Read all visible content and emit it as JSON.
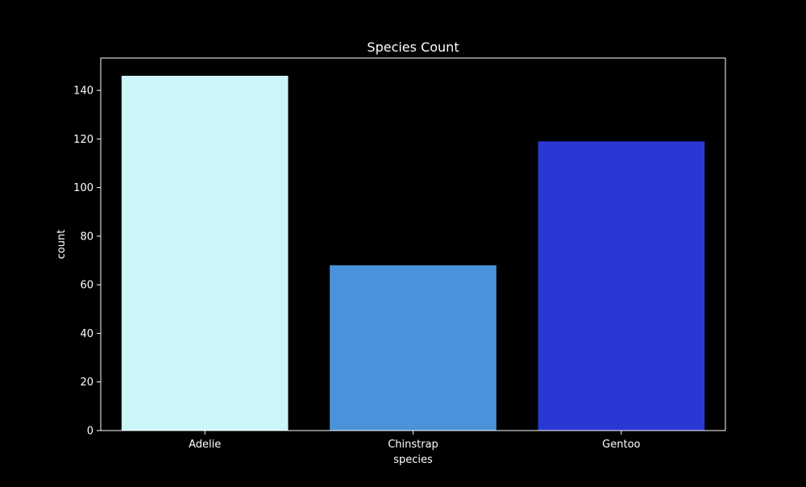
{
  "chart_data": {
    "type": "bar",
    "title": "Species Count",
    "xlabel": "species",
    "ylabel": "count",
    "categories": [
      "Adelie",
      "Chinstrap",
      "Gentoo"
    ],
    "values": [
      146,
      68,
      119
    ],
    "ylim": [
      0,
      153.3
    ],
    "yticks": [
      0,
      20,
      40,
      60,
      80,
      100,
      120,
      140
    ],
    "grid": false,
    "bar_colors": [
      "#ccf5f7",
      "#4a93db",
      "#2a38d3"
    ],
    "background": "#000000",
    "axis_color": "#ffffff",
    "text_color": "#ffffff"
  }
}
